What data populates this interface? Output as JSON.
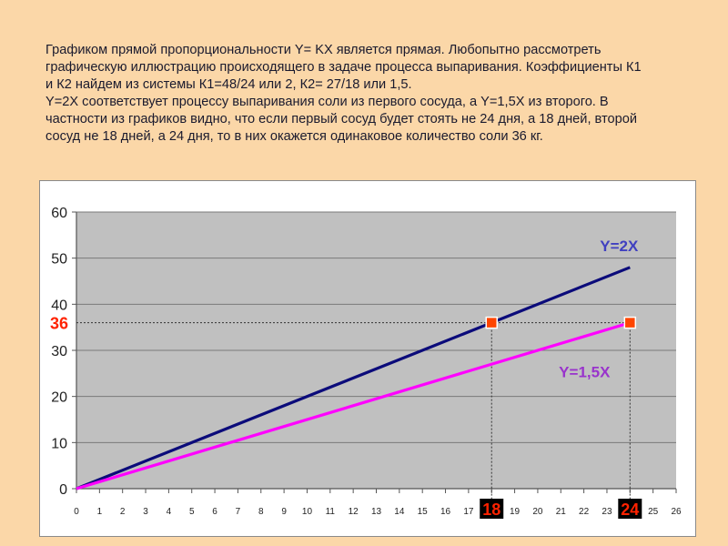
{
  "text": {
    "lines": [
      "Графиком прямой пропорциональности Y= KX является прямая. Любопытно рассмотреть",
      "графическую иллюстрацию происходящего в задаче процесса выпаривания. Коэффициенты К1",
      "и К2 найдем из системы К1=48/24 или 2, К2= 27/18 или 1,5.",
      "Y=2X соответствует процессу выпаривания соли из первого сосуда, а Y=1,5X из второго. В",
      "частности из графиков видно, что если первый сосуд будет стоять не 24 дня, а 18 дней, второй",
      "сосуд не  18 дней, а 24 дня, то в них окажется одинаковое количество соли 36 кг."
    ]
  },
  "chart_data": {
    "type": "line",
    "xlim": [
      0,
      26
    ],
    "ylim": [
      0,
      60
    ],
    "x_ticks": [
      "0",
      "1",
      "2",
      "3",
      "4",
      "5",
      "6",
      "7",
      "8",
      "9",
      "10",
      "11",
      "12",
      "13",
      "14",
      "15",
      "16",
      "17",
      "18",
      "19",
      "20",
      "21",
      "22",
      "23",
      "24",
      "25",
      "26"
    ],
    "y_ticks": [
      "0",
      "10",
      "20",
      "30",
      "40",
      "50",
      "60"
    ],
    "grid": true,
    "plot_background": "#C0C0C0",
    "series": [
      {
        "name": "Y=2X",
        "color": "#0B0B7A",
        "label_color": "#4040C0",
        "points": [
          [
            0,
            0
          ],
          [
            24,
            48
          ]
        ]
      },
      {
        "name": "Y=1,5X",
        "color": "#FF00FF",
        "label_color": "#9933CC",
        "points": [
          [
            0,
            0
          ],
          [
            24,
            36
          ]
        ]
      }
    ],
    "markers": [
      {
        "x": 18,
        "y": 36,
        "color": "#FF4500"
      },
      {
        "x": 24,
        "y": 36,
        "color": "#FF4500"
      }
    ],
    "highlight_labels": {
      "y": {
        "value": 36,
        "text": "36",
        "color": "#FF2200"
      },
      "x": [
        {
          "value": 18,
          "text": "18",
          "color": "#FF2200",
          "background": "#000000"
        },
        {
          "value": 24,
          "text": "24",
          "color": "#FF2200",
          "background": "#000000"
        }
      ]
    }
  }
}
